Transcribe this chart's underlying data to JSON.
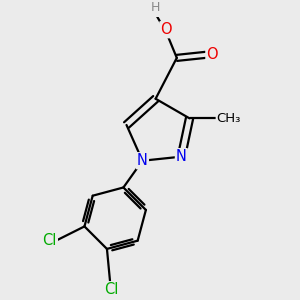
{
  "bg_color": "#ebebeb",
  "bond_color": "#000000",
  "bond_width": 1.6,
  "atom_colors": {
    "N": "#0000ee",
    "O": "#ee0000",
    "Cl": "#00aa00",
    "C": "#000000",
    "H": "#888888"
  },
  "font_size": 10.5
}
